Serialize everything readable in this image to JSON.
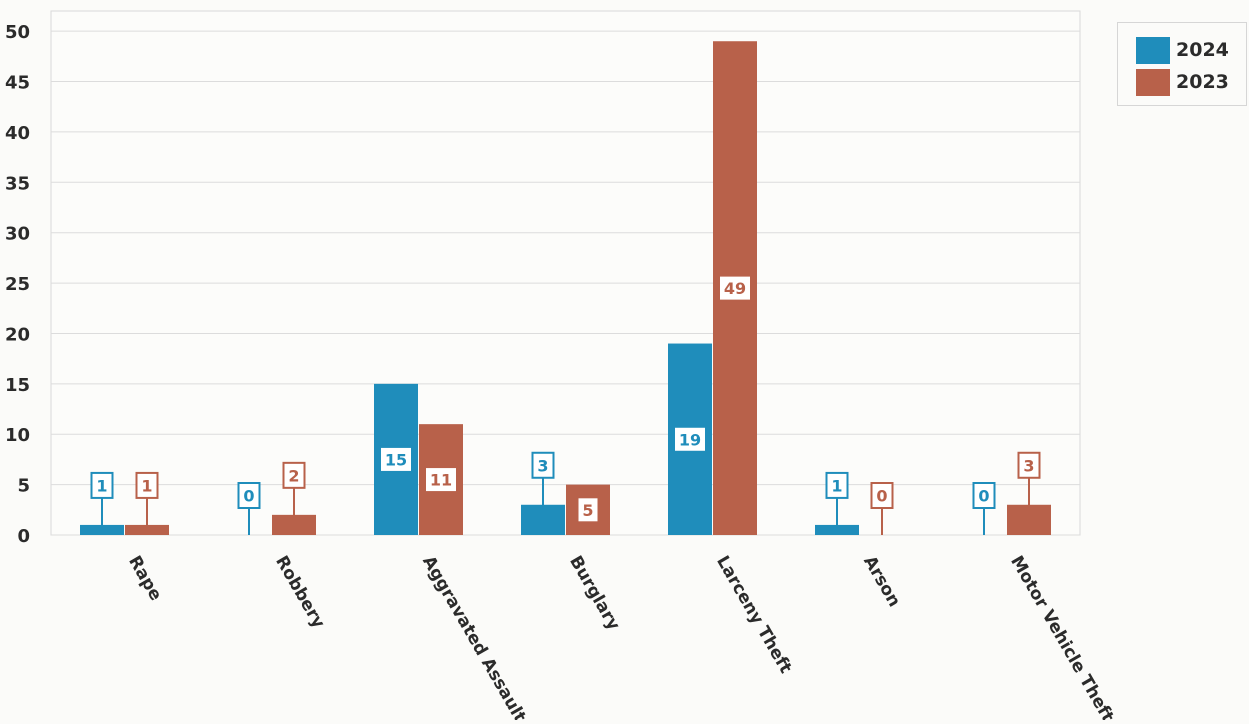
{
  "chart_data": {
    "type": "bar",
    "title": "",
    "xlabel": "",
    "ylabel": "",
    "categories": [
      "Rape",
      "Robbery",
      "Aggravated Assault",
      "Burglary",
      "Larceny Theft",
      "Arson",
      "Motor Vehicle Theft"
    ],
    "series": [
      {
        "name": "2024",
        "color": "#1f8dbb",
        "values": [
          1,
          0,
          15,
          3,
          19,
          1,
          0
        ]
      },
      {
        "name": "2023",
        "color": "#b8614a",
        "values": [
          1,
          2,
          11,
          5,
          49,
          0,
          3
        ]
      }
    ],
    "ylim": [
      0,
      52
    ],
    "yticks": [
      0,
      5,
      10,
      15,
      20,
      25,
      30,
      35,
      40,
      45,
      50
    ],
    "grid": true,
    "legend_position": "top-right"
  }
}
